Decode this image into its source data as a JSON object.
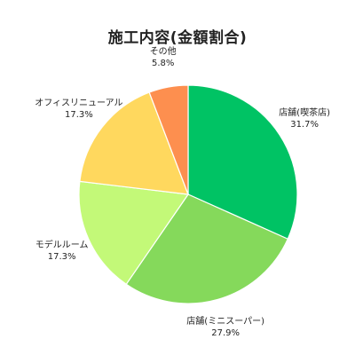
{
  "chart_data": {
    "type": "pie",
    "title": "施工内容(金額割合)",
    "start": "top",
    "direction": "clockwise",
    "slices": [
      {
        "label": "店舗(喫茶店)",
        "value": 31.7,
        "value_label": "31.7%",
        "color": "#00c364"
      },
      {
        "label": "店舗(ミニスーパー)",
        "value": 27.9,
        "value_label": "27.9%",
        "color": "#85d95b"
      },
      {
        "label": "モデルルーム",
        "value": 17.3,
        "value_label": "17.3%",
        "color": "#c3f978"
      },
      {
        "label": "オフィスリニューアル",
        "value": 17.3,
        "value_label": "17.3%",
        "color": "#ffd85e"
      },
      {
        "label": "その他",
        "value": 5.8,
        "value_label": "5.8%",
        "color": "#fd8f4f"
      }
    ]
  }
}
